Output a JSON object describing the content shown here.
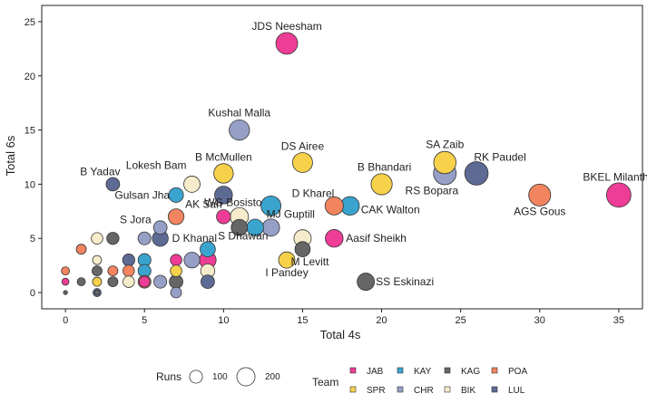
{
  "chart_data": {
    "type": "scatter",
    "title": "",
    "xlabel": "Total 4s",
    "ylabel": "Total 6s",
    "xlim": [
      -1.5,
      36.5
    ],
    "ylim": [
      -1.5,
      26.5
    ],
    "xticks": [
      0,
      5,
      10,
      15,
      20,
      25,
      30,
      35
    ],
    "yticks": [
      0,
      5,
      10,
      15,
      20,
      25
    ],
    "grid": false,
    "size_legend": {
      "title": "Runs",
      "entries": [
        100,
        200
      ]
    },
    "team_legend": {
      "title": "Team",
      "entries": [
        {
          "name": "JAB",
          "color": "#ee3d96"
        },
        {
          "name": "KAY",
          "color": "#3aa4cf"
        },
        {
          "name": "KAG",
          "color": "#666666"
        },
        {
          "name": "POA",
          "color": "#f28560"
        },
        {
          "name": "SPR",
          "color": "#f7d14a"
        },
        {
          "name": "CHR",
          "color": "#96a0c6"
        },
        {
          "name": "BIK",
          "color": "#f6eccb"
        },
        {
          "name": "LUL",
          "color": "#5d6b94"
        }
      ]
    },
    "points": [
      {
        "x": 14,
        "y": 23,
        "runs": 285,
        "team": "JAB",
        "label": "JDS Neesham"
      },
      {
        "x": 11,
        "y": 15,
        "runs": 250,
        "team": "CHR",
        "label": "Kushal Malla"
      },
      {
        "x": 15,
        "y": 12,
        "runs": 240,
        "team": "SPR",
        "label": "DS Airee"
      },
      {
        "x": 10,
        "y": 11,
        "runs": 230,
        "team": "SPR",
        "label": "B McMullen"
      },
      {
        "x": 8,
        "y": 10,
        "runs": 160,
        "team": "BIK",
        "label": "Lokesh Bam"
      },
      {
        "x": 3,
        "y": 10,
        "runs": 110,
        "team": "LUL",
        "label": "B Yadav"
      },
      {
        "x": 7,
        "y": 9,
        "runs": 130,
        "team": "KAY",
        "label": "Gulsan Jha"
      },
      {
        "x": 10,
        "y": 9,
        "runs": 190,
        "team": "LUL",
        "label": ""
      },
      {
        "x": 13,
        "y": 8,
        "runs": 240,
        "team": "KAY",
        "label": "WG Bosisto"
      },
      {
        "x": 17,
        "y": 8,
        "runs": 200,
        "team": "POA",
        "label": "D Kharel"
      },
      {
        "x": 18,
        "y": 8,
        "runs": 210,
        "team": "KAY",
        "label": "CAK Walton"
      },
      {
        "x": 20,
        "y": 10,
        "runs": 270,
        "team": "SPR",
        "label": "B Bhandari"
      },
      {
        "x": 24,
        "y": 12,
        "runs": 300,
        "team": "SPR",
        "label": "SA Zaib"
      },
      {
        "x": 24,
        "y": 11,
        "runs": 310,
        "team": "CHR",
        "label": "RS Bopara"
      },
      {
        "x": 26,
        "y": 11,
        "runs": 330,
        "team": "LUL",
        "label": "RK Paudel"
      },
      {
        "x": 30,
        "y": 9,
        "runs": 290,
        "team": "POA",
        "label": "AGS Gous"
      },
      {
        "x": 35,
        "y": 9,
        "runs": 360,
        "team": "JAB",
        "label": "BKEL Milantha"
      },
      {
        "x": 7,
        "y": 7,
        "runs": 150,
        "team": "POA",
        "label": "AK Sah"
      },
      {
        "x": 10,
        "y": 7,
        "runs": 120,
        "team": "JAB",
        "label": ""
      },
      {
        "x": 11,
        "y": 7,
        "runs": 200,
        "team": "BIK",
        "label": ""
      },
      {
        "x": 11,
        "y": 6,
        "runs": 160,
        "team": "KAG",
        "label": "S Dhawan"
      },
      {
        "x": 12,
        "y": 6,
        "runs": 170,
        "team": "KAY",
        "label": ""
      },
      {
        "x": 13,
        "y": 6,
        "runs": 180,
        "team": "CHR",
        "label": "MJ Guptill"
      },
      {
        "x": 6,
        "y": 6,
        "runs": 110,
        "team": "CHR",
        "label": "S Jora"
      },
      {
        "x": 6,
        "y": 5,
        "runs": 150,
        "team": "LUL",
        "label": "D Khanal"
      },
      {
        "x": 15,
        "y": 5,
        "runs": 180,
        "team": "BIK",
        "label": ""
      },
      {
        "x": 15,
        "y": 4,
        "runs": 140,
        "team": "KAG",
        "label": "M Levitt"
      },
      {
        "x": 17,
        "y": 5,
        "runs": 190,
        "team": "JAB",
        "label": "Aasif Sheikh"
      },
      {
        "x": 14,
        "y": 3,
        "runs": 160,
        "team": "SPR",
        "label": "I Pandey"
      },
      {
        "x": 19,
        "y": 1,
        "runs": 180,
        "team": "KAG",
        "label": "SS Eskinazi"
      },
      {
        "x": 5,
        "y": 5,
        "runs": 100,
        "team": "CHR",
        "label": ""
      },
      {
        "x": 3,
        "y": 5,
        "runs": 90,
        "team": "KAG",
        "label": ""
      },
      {
        "x": 2,
        "y": 5,
        "runs": 80,
        "team": "BIK",
        "label": ""
      },
      {
        "x": 1,
        "y": 4,
        "runs": 60,
        "team": "POA",
        "label": ""
      },
      {
        "x": 9,
        "y": 4,
        "runs": 140,
        "team": "KAY",
        "label": ""
      },
      {
        "x": 9,
        "y": 3,
        "runs": 170,
        "team": "JAB",
        "label": ""
      },
      {
        "x": 8,
        "y": 3,
        "runs": 150,
        "team": "CHR",
        "label": ""
      },
      {
        "x": 7,
        "y": 3,
        "runs": 80,
        "team": "JAB",
        "label": ""
      },
      {
        "x": 5,
        "y": 3,
        "runs": 100,
        "team": "KAY",
        "label": ""
      },
      {
        "x": 4,
        "y": 3,
        "runs": 90,
        "team": "LUL",
        "label": ""
      },
      {
        "x": 2,
        "y": 3,
        "runs": 50,
        "team": "BIK",
        "label": ""
      },
      {
        "x": 0,
        "y": 2,
        "runs": 40,
        "team": "POA",
        "label": ""
      },
      {
        "x": 2,
        "y": 2,
        "runs": 60,
        "team": "KAG",
        "label": ""
      },
      {
        "x": 3,
        "y": 2,
        "runs": 60,
        "team": "POA",
        "label": ""
      },
      {
        "x": 4,
        "y": 2,
        "runs": 80,
        "team": "POA",
        "label": ""
      },
      {
        "x": 5,
        "y": 2,
        "runs": 100,
        "team": "KAY",
        "label": ""
      },
      {
        "x": 7,
        "y": 2,
        "runs": 80,
        "team": "SPR",
        "label": ""
      },
      {
        "x": 9,
        "y": 2,
        "runs": 120,
        "team": "BIK",
        "label": ""
      },
      {
        "x": 0,
        "y": 1,
        "runs": 30,
        "team": "JAB",
        "label": ""
      },
      {
        "x": 1,
        "y": 1,
        "runs": 40,
        "team": "KAG",
        "label": ""
      },
      {
        "x": 2,
        "y": 1,
        "runs": 50,
        "team": "SPR",
        "label": ""
      },
      {
        "x": 3,
        "y": 1,
        "runs": 60,
        "team": "KAG",
        "label": ""
      },
      {
        "x": 4,
        "y": 1,
        "runs": 80,
        "team": "BIK",
        "label": ""
      },
      {
        "x": 5,
        "y": 1,
        "runs": 100,
        "team": "POA",
        "label": ""
      },
      {
        "x": 5,
        "y": 1,
        "runs": 70,
        "team": "JAB",
        "label": ""
      },
      {
        "x": 6,
        "y": 1,
        "runs": 100,
        "team": "CHR",
        "label": ""
      },
      {
        "x": 7,
        "y": 1,
        "runs": 110,
        "team": "KAG",
        "label": ""
      },
      {
        "x": 9,
        "y": 1,
        "runs": 110,
        "team": "LUL",
        "label": ""
      },
      {
        "x": 0,
        "y": 0,
        "runs": 10,
        "team": "KAG",
        "label": ""
      },
      {
        "x": 2,
        "y": 0,
        "runs": 40,
        "team": "LUL",
        "label": ""
      },
      {
        "x": 2,
        "y": 0,
        "runs": 15,
        "team": "KAG",
        "label": ""
      },
      {
        "x": 7,
        "y": 0,
        "runs": 70,
        "team": "CHR",
        "label": ""
      }
    ]
  }
}
